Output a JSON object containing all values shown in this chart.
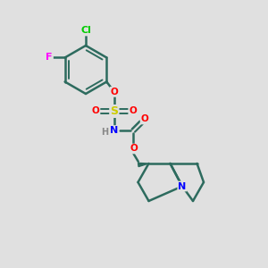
{
  "bg_color": "#e0e0e0",
  "bond_color": "#2d6b5e",
  "atom_colors": {
    "Cl": "#00cc00",
    "F": "#ff00ff",
    "O": "#ff0000",
    "S": "#cccc00",
    "N": "#0000ff",
    "H": "#888888",
    "C": "#2d6b5e"
  },
  "figsize": [
    3.0,
    3.0
  ],
  "dpi": 100
}
